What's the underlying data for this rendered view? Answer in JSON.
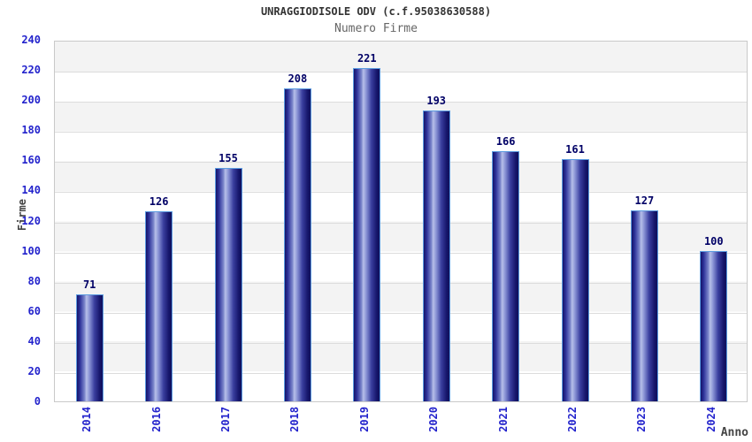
{
  "header": {
    "title": "UNRAGGIODISOLE ODV (c.f.95038630588)",
    "subtitle": "Numero Firme"
  },
  "chart_data": {
    "type": "bar",
    "title": "UNRAGGIODISOLE ODV (c.f.95038630588)",
    "subtitle": "Numero Firme",
    "xlabel": "Anno",
    "ylabel": "Firme",
    "categories": [
      "2014",
      "2016",
      "2017",
      "2018",
      "2019",
      "2020",
      "2021",
      "2022",
      "2023",
      "2024"
    ],
    "values": [
      71,
      126,
      155,
      208,
      221,
      193,
      166,
      161,
      127,
      100
    ],
    "data_labels_shown": true,
    "ylim": [
      0,
      240
    ],
    "yticks": [
      0,
      20,
      40,
      60,
      80,
      100,
      120,
      140,
      160,
      180,
      200,
      220,
      240
    ],
    "grid": "horizontal lines with alternating gray/white bands every 20 units",
    "legend": "none",
    "xtick_rotation_deg": 90,
    "colors": {
      "bar_dark": "#141469",
      "bar_highlight": "#b7bfe9",
      "bar_border": "#5b9be0",
      "tick_label": "#2323cc",
      "value_label": "#000066",
      "axis_label": "#444444",
      "title": "#333333",
      "subtitle": "#666666",
      "band_gray": "#f3f3f3",
      "grid_line": "#dcdcdc",
      "plot_border": "#c9c9c9",
      "background": "#ffffff"
    }
  }
}
